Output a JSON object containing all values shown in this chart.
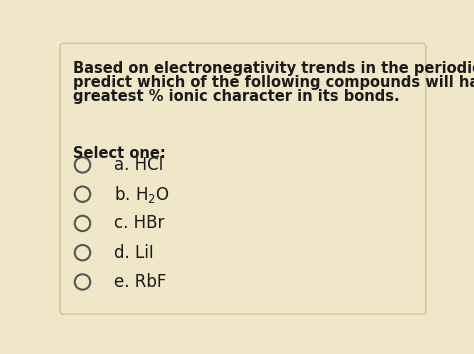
{
  "background_color": "#f0e6c8",
  "text_color": "#1a1a1a",
  "question_line1": "Based on electronegativity trends in the periodic table,",
  "question_line2": "predict which of the following compounds will have the",
  "question_line3": "greatest % ionic character in its bonds.",
  "select_label": "Select one:",
  "options": [
    {
      "label": "a. HCl",
      "has_sub": false
    },
    {
      "label": "b. H₂O",
      "has_sub": true,
      "mathtext": "b. H$_2$O"
    },
    {
      "label": "c. HBr",
      "has_sub": false
    },
    {
      "label": "d. LiI",
      "has_sub": false
    },
    {
      "label": "e. RbF",
      "has_sub": false
    }
  ],
  "circle_edge_color": "#555555",
  "circle_fill_color": "#f0e6c8",
  "question_fontsize": 10.5,
  "option_fontsize": 12,
  "select_fontsize": 10.5,
  "figsize": [
    4.74,
    3.54
  ],
  "dpi": 100
}
